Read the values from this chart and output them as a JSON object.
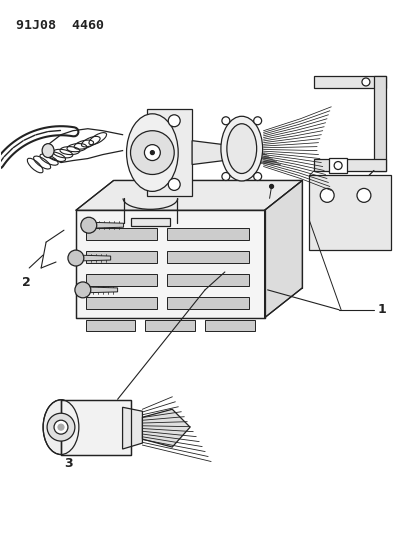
{
  "title": "91J08  4460",
  "bg_color": "#ffffff",
  "line_color": "#222222",
  "label_1": "1",
  "label_2": "2",
  "label_3": "3",
  "figsize": [
    4.14,
    5.33
  ],
  "dpi": 100
}
